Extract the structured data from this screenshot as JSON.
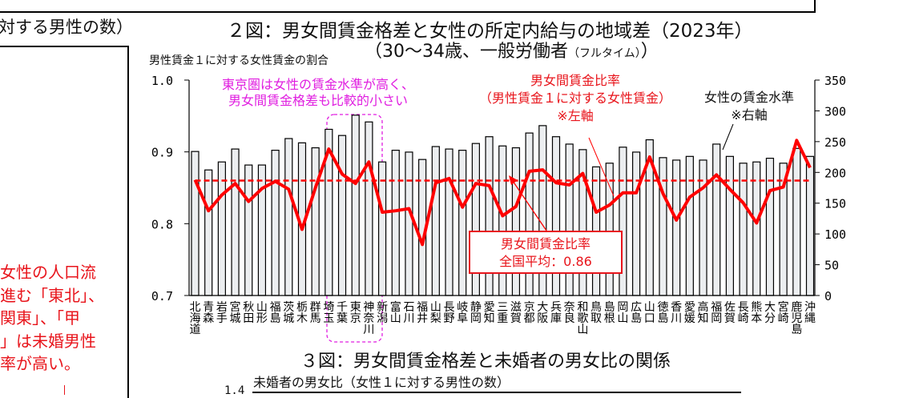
{
  "prev_panel": {
    "title_fragment": "対する男性の数）",
    "note_lines": [
      "女性の人口流",
      "進む「東北」、",
      "関東」、「甲",
      "」は未婚男性",
      "率が高い。"
    ]
  },
  "figure3": {
    "title": "３図：男女間賃金格差と未婚者の男女比の関係",
    "ylabel": "未婚者の男女比（女性１に対する男性の数）",
    "first_tick": "1.4"
  },
  "colors": {
    "line": "#ff0000",
    "bar_fill": "#eceef0",
    "bar_stroke": "#000000",
    "highlight": "#e01ee0"
  },
  "chart_data": {
    "type": "bar+line",
    "title": "２図：男女間賃金格差と女性の所定内給与の地域差（2023年）",
    "subtitle": "（30～34歳、一般労働者",
    "subtitle_small": "（フルタイム）",
    "subtitle_end": "）",
    "ylabel_left": "男性賃金１に対する女性賃金の割合",
    "ylim_left": [
      0.7,
      1.0
    ],
    "yticks_left": [
      "1.0",
      "0.9",
      "0.8",
      "0.7"
    ],
    "ylim_right": [
      0,
      350
    ],
    "yticks_right": [
      "350",
      "300",
      "250",
      "200",
      "150",
      "100",
      "50",
      "0"
    ],
    "categories": [
      "北海道",
      "青森",
      "岩手",
      "宮城",
      "秋田",
      "山形",
      "福島",
      "茨城",
      "栃木",
      "群馬",
      "埼玉",
      "千葉",
      "東京",
      "神奈川",
      "新潟",
      "富山",
      "石川",
      "福井",
      "山梨",
      "長野",
      "岐阜",
      "静岡",
      "愛知",
      "三重",
      "滋賀",
      "京都",
      "大阪",
      "兵庫",
      "奈良",
      "和歌山",
      "鳥取",
      "島根",
      "岡山",
      "広島",
      "山口",
      "徳島",
      "香川",
      "愛媛",
      "高知",
      "福岡",
      "佐賀",
      "長崎",
      "熊本",
      "大分",
      "宮崎",
      "鹿児島",
      "沖縄"
    ],
    "series": [
      {
        "name": "女性の賃金水準",
        "axis": "right",
        "type": "bar",
        "values": [
          234,
          204,
          217,
          238,
          212,
          212,
          236,
          255,
          248,
          240,
          270,
          260,
          293,
          282,
          217,
          236,
          233,
          221,
          242,
          238,
          236,
          247,
          258,
          243,
          240,
          264,
          276,
          258,
          246,
          237,
          209,
          215,
          241,
          233,
          253,
          224,
          220,
          226,
          220,
          246,
          226,
          215,
          217,
          223,
          215,
          239,
          226
        ]
      },
      {
        "name": "男女間賃金比率",
        "axis": "left",
        "type": "line",
        "values": [
          0.861,
          0.818,
          0.84,
          0.856,
          0.831,
          0.849,
          0.859,
          0.848,
          0.792,
          0.85,
          0.904,
          0.869,
          0.856,
          0.886,
          0.816,
          0.818,
          0.821,
          0.771,
          0.857,
          0.863,
          0.823,
          0.856,
          0.853,
          0.811,
          0.824,
          0.873,
          0.875,
          0.857,
          0.854,
          0.87,
          0.816,
          0.826,
          0.843,
          0.843,
          0.893,
          0.842,
          0.805,
          0.837,
          0.85,
          0.868,
          0.848,
          0.829,
          0.801,
          0.846,
          0.851,
          0.916,
          0.878
        ]
      }
    ],
    "national_average": 0.86,
    "annotations": {
      "tokyo_note": [
        "東京圏は女性の賃金水準が高く、",
        "男女間賃金格差も比較的小さい"
      ],
      "ratio_label": [
        "男女間賃金比率",
        "（男性賃金１に対する女性賃金）",
        "※左軸"
      ],
      "wage_label": [
        "女性の賃金水準",
        "※右軸"
      ],
      "avg_box": [
        "男女間賃金比率",
        "全国平均：0.86"
      ]
    },
    "grid": false,
    "legend": "none"
  }
}
